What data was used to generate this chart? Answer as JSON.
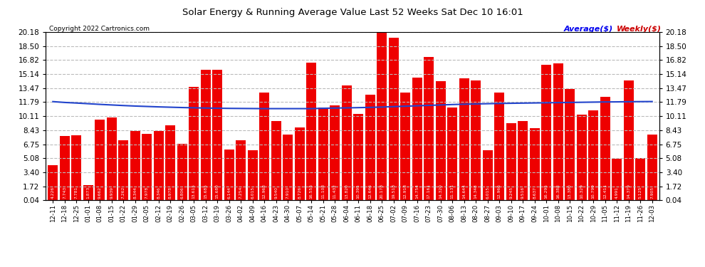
{
  "title": "Solar Energy & Running Average Value Last 52 Weeks Sat Dec 10 16:01",
  "copyright": "Copyright 2022 Cartronics.com",
  "bar_color": "#ee0000",
  "avg_line_color": "#2244cc",
  "background_color": "#ffffff",
  "plot_bg_color": "#ffffff",
  "grid_color": "#cccccc",
  "ylim": [
    0.04,
    20.18
  ],
  "yticks": [
    0.04,
    1.72,
    3.4,
    5.08,
    6.75,
    8.43,
    10.11,
    11.79,
    13.47,
    15.14,
    16.82,
    18.5,
    20.18
  ],
  "legend_labels": [
    "Average($)",
    "Weekly($)"
  ],
  "legend_colors": [
    "#0000ee",
    "#cc0000"
  ],
  "dates": [
    "12-11",
    "12-18",
    "12-25",
    "01-01",
    "01-08",
    "01-15",
    "01-22",
    "01-29",
    "02-05",
    "02-12",
    "02-19",
    "02-26",
    "03-05",
    "03-12",
    "03-19",
    "03-26",
    "04-02",
    "04-09",
    "04-16",
    "04-23",
    "04-30",
    "05-07",
    "05-14",
    "05-21",
    "05-28",
    "06-04",
    "06-11",
    "06-18",
    "06-25",
    "07-02",
    "07-09",
    "07-16",
    "07-23",
    "07-30",
    "08-06",
    "08-13",
    "08-20",
    "08-27",
    "09-03",
    "09-10",
    "09-17",
    "09-24",
    "10-01",
    "10-08",
    "10-15",
    "10-22",
    "10-29",
    "11-05",
    "11-12",
    "11-19",
    "11-26",
    "12-03"
  ],
  "weekly_values": [
    4.226,
    7.743,
    7.781,
    1.873,
    9.662,
    9.939,
    7.262,
    8.344,
    7.978,
    8.346,
    8.978,
    6.806,
    13.615,
    15.685,
    15.68,
    6.144,
    7.254,
    6.015,
    12.968,
    9.54,
    7.91,
    8.726,
    16.555,
    11.108,
    11.432,
    13.82,
    10.395,
    12.646,
    20.178,
    19.518,
    12.918,
    14.754,
    17.161,
    14.32,
    11.131,
    14.644,
    14.348,
    6.015,
    12.966,
    9.245,
    9.516,
    8.637,
    16.295,
    16.388,
    13.38,
    10.329,
    10.799,
    12.411,
    4.991,
    14.379,
    5.125,
    7.905
  ],
  "avg_values": [
    11.85,
    11.75,
    11.68,
    11.6,
    11.52,
    11.45,
    11.38,
    11.32,
    11.27,
    11.22,
    11.18,
    11.14,
    11.11,
    11.08,
    11.06,
    11.04,
    11.03,
    11.02,
    11.01,
    11.01,
    11.01,
    11.01,
    11.01,
    11.05,
    11.08,
    11.1,
    11.13,
    11.16,
    11.2,
    11.25,
    11.3,
    11.35,
    11.4,
    11.45,
    11.5,
    11.54,
    11.57,
    11.6,
    11.63,
    11.65,
    11.67,
    11.69,
    11.71,
    11.73,
    11.75,
    11.77,
    11.79,
    11.81,
    11.82,
    11.84,
    11.85,
    11.86
  ]
}
